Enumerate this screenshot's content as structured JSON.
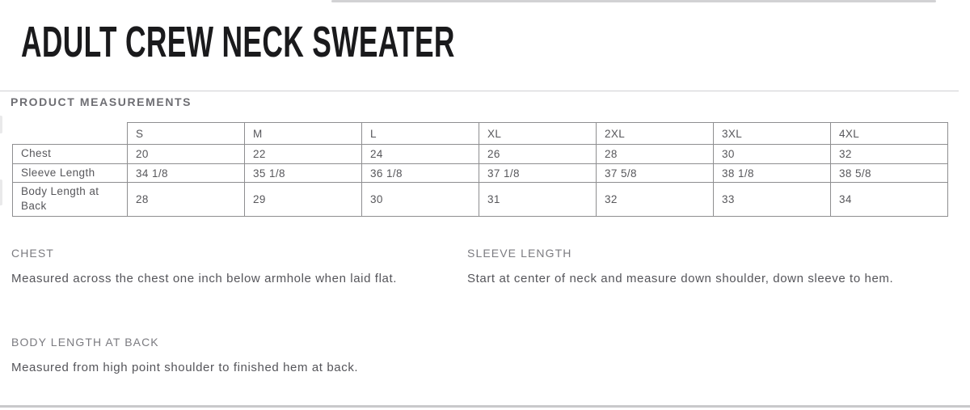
{
  "page": {
    "title": "ADULT CREW NECK SWEATER",
    "section_heading": "PRODUCT MEASUREMENTS"
  },
  "colors": {
    "title_text": "#1a1a1c",
    "section_heading_text": "#6e6e73",
    "table_border": "#8e8e90",
    "table_text": "#57575b",
    "description_text": "#55555a",
    "divider": "#cfcfd2"
  },
  "table": {
    "size_headers": [
      "S",
      "M",
      "L",
      "XL",
      "2XL",
      "3XL",
      "4XL"
    ],
    "rows": [
      {
        "label": "Chest",
        "values": [
          "20",
          "22",
          "24",
          "26",
          "28",
          "30",
          "32"
        ]
      },
      {
        "label": "Sleeve Length",
        "values": [
          "34 1/8",
          "35 1/8",
          "36 1/8",
          "37 1/8",
          "37 5/8",
          "38 1/8",
          "38 5/8"
        ]
      },
      {
        "label": "Body Length at Back",
        "values": [
          "28",
          "29",
          "30",
          "31",
          "32",
          "33",
          "34"
        ]
      }
    ]
  },
  "descriptions": [
    {
      "heading": "CHEST",
      "text": "Measured across the chest one inch below armhole when laid flat."
    },
    {
      "heading": "SLEEVE LENGTH",
      "text": "Start at center of neck and measure down shoulder, down sleeve to hem."
    },
    {
      "heading": "BODY LENGTH AT BACK",
      "text": "Measured from high point shoulder to finished hem at back."
    }
  ]
}
